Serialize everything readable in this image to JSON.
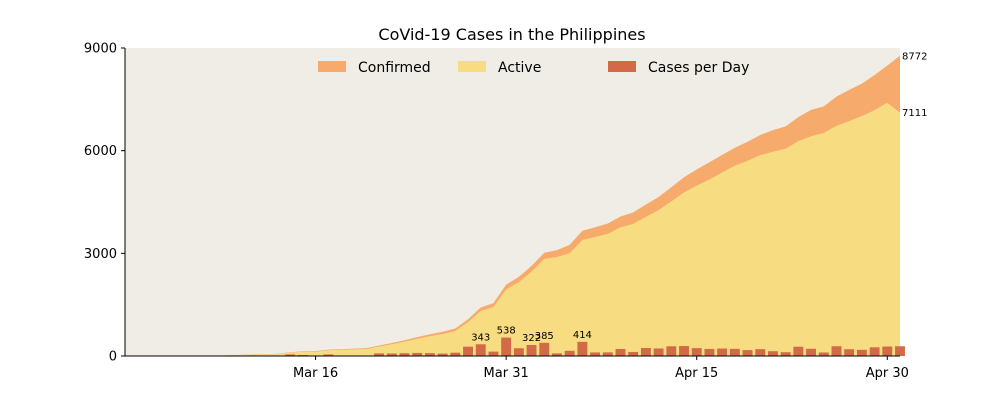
{
  "chart_data": {
    "type": "area",
    "title": "CoVid-19 Cases in the Philippines",
    "xlabel": "",
    "ylabel": "",
    "ylim": [
      0,
      9000
    ],
    "yticks": [
      0,
      3000,
      6000,
      9000
    ],
    "xticks": [
      {
        "label": "Mar 16",
        "day": 15
      },
      {
        "label": "Mar 31",
        "day": 30
      },
      {
        "label": "Apr 15",
        "day": 45
      },
      {
        "label": "Apr 30",
        "day": 60
      }
    ],
    "x_start": "Mar 1",
    "x_end": "May 1",
    "days": [
      0,
      1,
      2,
      3,
      4,
      5,
      6,
      7,
      8,
      9,
      10,
      11,
      12,
      13,
      14,
      15,
      16,
      17,
      18,
      19,
      20,
      21,
      22,
      23,
      24,
      25,
      26,
      27,
      28,
      29,
      30,
      31,
      32,
      33,
      34,
      35,
      36,
      37,
      38,
      39,
      40,
      41,
      42,
      43,
      44,
      45,
      46,
      47,
      48,
      49,
      50,
      51,
      52,
      53,
      54,
      55,
      56,
      57,
      58,
      59,
      60,
      61
    ],
    "legend_position": "top-center",
    "series": [
      {
        "name": "Confirmed",
        "kind": "area",
        "color": "#f6ab6c",
        "values": [
          3,
          3,
          3,
          3,
          3,
          5,
          6,
          10,
          20,
          33,
          49,
          52,
          64,
          111,
          140,
          142,
          187,
          202,
          217,
          230,
          307,
          380,
          462,
          552,
          636,
          707,
          803,
          1075,
          1418,
          1546,
          2084,
          2311,
          2633,
          3018,
          3094,
          3246,
          3660,
          3764,
          3870,
          4076,
          4195,
          4428,
          4648,
          4932,
          5223,
          5453,
          5660,
          5878,
          6087,
          6259,
          6459,
          6599,
          6710,
          6981,
          7192,
          7294,
          7579,
          7777,
          7958,
          8212,
          8488,
          8772
        ]
      },
      {
        "name": "Active",
        "kind": "area",
        "color": "#f8dc81",
        "values": [
          1,
          1,
          1,
          1,
          1,
          2,
          3,
          6,
          14,
          26,
          40,
          44,
          55,
          98,
          126,
          126,
          168,
          182,
          194,
          205,
          276,
          343,
          419,
          500,
          578,
          641,
          730,
          990,
          1314,
          1428,
          1945,
          2158,
          2466,
          2838,
          2893,
          3003,
          3389,
          3476,
          3570,
          3763,
          3862,
          4067,
          4264,
          4519,
          4776,
          4977,
          5159,
          5362,
          5563,
          5703,
          5868,
          5969,
          6055,
          6278,
          6421,
          6521,
          6725,
          6867,
          7008,
          7183,
          7399,
          7111
        ]
      },
      {
        "name": "Cases per Day",
        "kind": "bar",
        "color": "#d26a48",
        "values": [
          0,
          0,
          0,
          0,
          0,
          2,
          1,
          4,
          10,
          13,
          16,
          3,
          12,
          47,
          29,
          2,
          45,
          15,
          15,
          13,
          77,
          73,
          82,
          90,
          84,
          71,
          96,
          272,
          343,
          128,
          538,
          227,
          322,
          385,
          76,
          152,
          414,
          104,
          106,
          206,
          119,
          233,
          220,
          284,
          291,
          230,
          207,
          218,
          209,
          172,
          200,
          140,
          111,
          271,
          211,
          102,
          285,
          198,
          181,
          254,
          276,
          284
        ],
        "data_labels": [
          {
            "day": 28,
            "text": "343"
          },
          {
            "day": 30,
            "text": "538"
          },
          {
            "day": 32,
            "text": "322"
          },
          {
            "day": 33,
            "text": "385"
          },
          {
            "day": 36,
            "text": "414"
          }
        ]
      }
    ],
    "end_labels": [
      {
        "series": "Confirmed",
        "text": "8772"
      },
      {
        "series": "Active",
        "text": "7111"
      }
    ],
    "colors": {
      "plot_background": "#efede6",
      "axis": "#000000"
    }
  }
}
